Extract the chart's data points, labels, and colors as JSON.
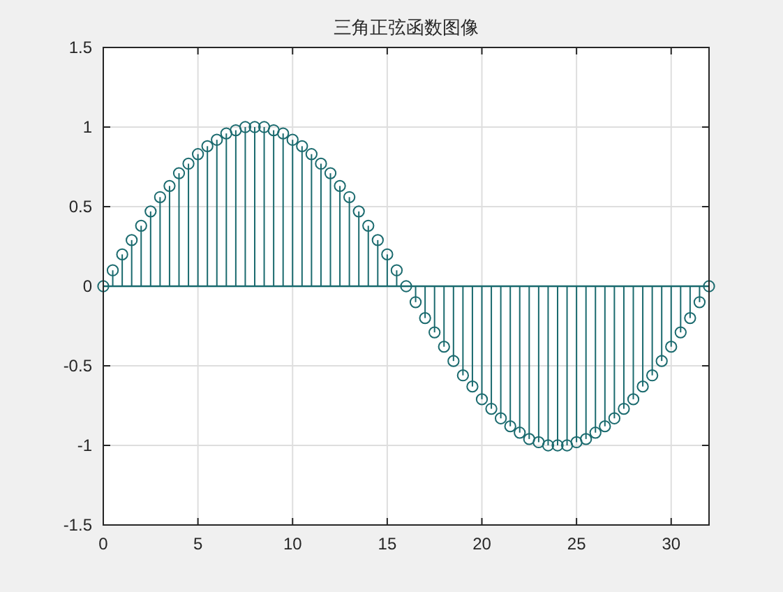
{
  "chart_data": {
    "type": "lollipop",
    "title": "三角正弦函数图像",
    "x": [
      0,
      0.5,
      1,
      1.5,
      2,
      2.5,
      3,
      3.5,
      4,
      4.5,
      5,
      5.5,
      6,
      6.5,
      7,
      7.5,
      8,
      8.5,
      9,
      9.5,
      10,
      10.5,
      11,
      11.5,
      12,
      12.5,
      13,
      13.5,
      14,
      14.5,
      15,
      15.5,
      16,
      16.5,
      17,
      17.5,
      18,
      18.5,
      19,
      19.5,
      20,
      20.5,
      21,
      21.5,
      22,
      22.5,
      23,
      23.5,
      24,
      24.5,
      25,
      25.5,
      26,
      26.5,
      27,
      27.5,
      28,
      28.5,
      29,
      29.5,
      30,
      30.5,
      31,
      31.5,
      32
    ],
    "series": [
      {
        "color": "#1a6a6e",
        "values": [
          0,
          0.1,
          0.2,
          0.29,
          0.38,
          0.47,
          0.56,
          0.63,
          0.71,
          0.77,
          0.83,
          0.88,
          0.92,
          0.96,
          0.98,
          1.0,
          1.0,
          1.0,
          0.98,
          0.96,
          0.92,
          0.88,
          0.83,
          0.77,
          0.71,
          0.63,
          0.56,
          0.47,
          0.38,
          0.29,
          0.2,
          0.1,
          0,
          -0.1,
          -0.2,
          -0.29,
          -0.38,
          -0.47,
          -0.56,
          -0.63,
          -0.71,
          -0.77,
          -0.83,
          -0.88,
          -0.92,
          -0.96,
          -0.98,
          -1.0,
          -1.0,
          -1.0,
          -0.98,
          -0.96,
          -0.92,
          -0.88,
          -0.83,
          -0.77,
          -0.71,
          -0.63,
          -0.56,
          -0.47,
          -0.38,
          -0.29,
          -0.2,
          -0.1,
          0
        ]
      }
    ],
    "xlim": [
      0,
      32
    ],
    "ylim": [
      -1.5,
      1.5
    ],
    "xticks": [
      0,
      5,
      10,
      15,
      20,
      25,
      30
    ],
    "yticks": [
      -1.5,
      -1,
      -0.5,
      0,
      0.5,
      1,
      1.5
    ],
    "ref_lines": [
      {
        "axis": "y",
        "value": 0,
        "color": "#1a6a6e"
      }
    ],
    "grid": true,
    "marker": "circle"
  }
}
